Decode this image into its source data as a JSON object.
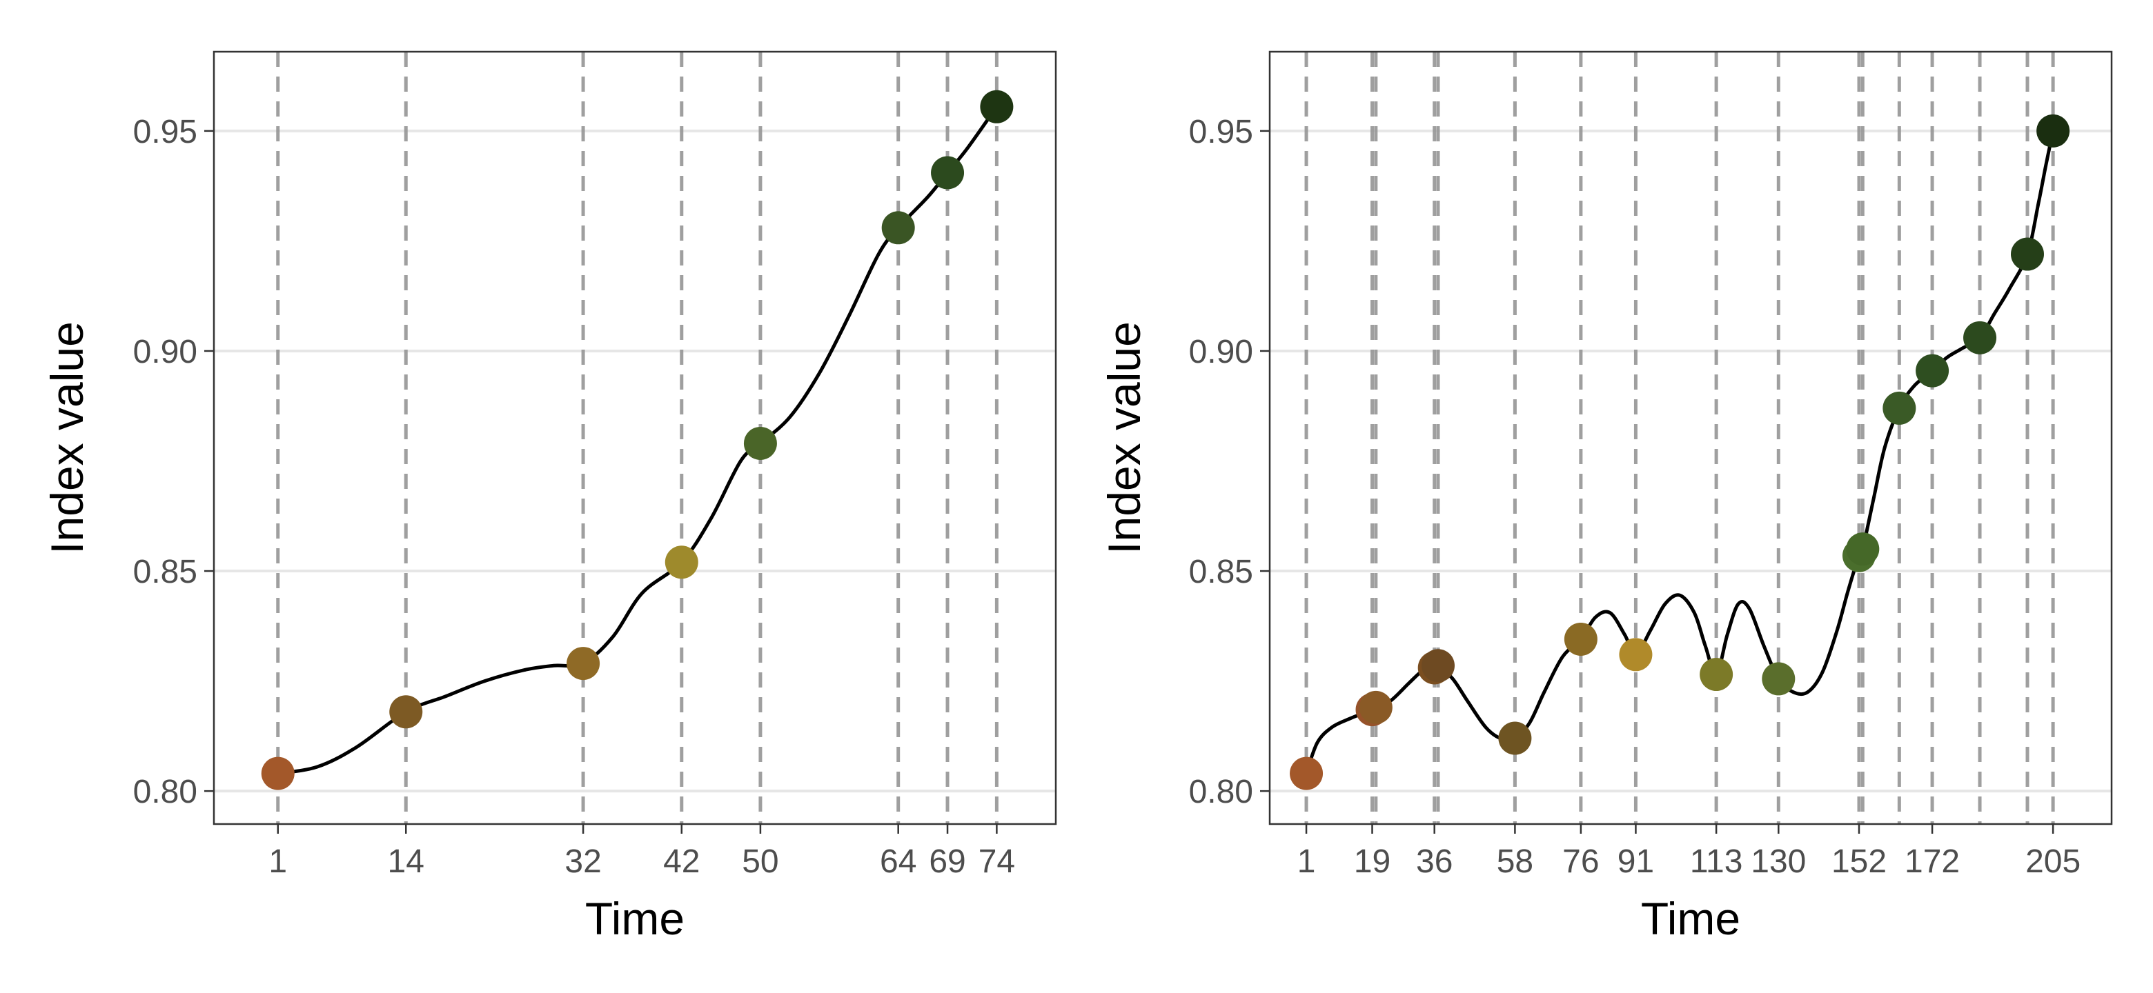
{
  "chart_data": [
    {
      "type": "line",
      "xlabel": "Time",
      "ylabel": "Index value",
      "xlim": [
        -5.5,
        80
      ],
      "ylim": [
        0.7925,
        0.968
      ],
      "grid": true,
      "x_ticks": [
        1,
        14,
        32,
        42,
        50,
        64,
        69,
        74
      ],
      "y_ticks": [
        0.8,
        0.85,
        0.9,
        0.95
      ],
      "y_tick_labels": [
        "0.80",
        "0.85",
        "0.90",
        "0.95"
      ],
      "vertical_reference_lines": [
        1,
        14,
        32,
        42,
        50,
        64,
        69,
        74
      ],
      "points": [
        {
          "x": 1,
          "y": 0.804,
          "color": "#a3582a"
        },
        {
          "x": 14,
          "y": 0.818,
          "color": "#7d5a24"
        },
        {
          "x": 32,
          "y": 0.829,
          "color": "#8f6a26"
        },
        {
          "x": 42,
          "y": 0.852,
          "color": "#9e8a2c"
        },
        {
          "x": 50,
          "y": 0.879,
          "color": "#4a6528"
        },
        {
          "x": 64,
          "y": 0.928,
          "color": "#3a5524"
        },
        {
          "x": 69,
          "y": 0.9405,
          "color": "#2c4a1e"
        },
        {
          "x": 74,
          "y": 0.9555,
          "color": "#1e3512"
        }
      ],
      "curve": [
        [
          1,
          0.804
        ],
        [
          5,
          0.8055
        ],
        [
          9,
          0.81
        ],
        [
          14,
          0.818
        ],
        [
          18,
          0.8215
        ],
        [
          22,
          0.825
        ],
        [
          26,
          0.8275
        ],
        [
          29,
          0.8285
        ],
        [
          32,
          0.829
        ],
        [
          35,
          0.835
        ],
        [
          38,
          0.845
        ],
        [
          42,
          0.852
        ],
        [
          45,
          0.862
        ],
        [
          48,
          0.875
        ],
        [
          50,
          0.879
        ],
        [
          53,
          0.885
        ],
        [
          56,
          0.895
        ],
        [
          59,
          0.908
        ],
        [
          62,
          0.922
        ],
        [
          64,
          0.928
        ],
        [
          67,
          0.935
        ],
        [
          69,
          0.9405
        ],
        [
          71,
          0.946
        ],
        [
          74,
          0.9555
        ]
      ]
    },
    {
      "type": "line",
      "xlabel": "Time",
      "ylabel": "Index value",
      "xlim": [
        -9,
        221
      ],
      "ylim": [
        0.7925,
        0.968
      ],
      "grid": true,
      "x_ticks": [
        1,
        19,
        36,
        58,
        76,
        91,
        113,
        130,
        152,
        172,
        205
      ],
      "x_tick_labels": [
        "1",
        "19",
        "36",
        "58",
        "76",
        "91",
        "113",
        "130",
        "152",
        "172",
        "205"
      ],
      "y_ticks": [
        0.8,
        0.85,
        0.9,
        0.95
      ],
      "y_tick_labels": [
        "0.80",
        "0.85",
        "0.90",
        "0.95"
      ],
      "vertical_reference_lines": [
        1,
        19,
        20,
        36,
        37,
        58,
        76,
        91,
        113,
        130,
        152,
        153,
        163,
        172,
        185,
        198,
        205
      ],
      "points": [
        {
          "x": 1,
          "y": 0.804,
          "color": "#a3582a"
        },
        {
          "x": 19,
          "y": 0.8185,
          "color": "#96522a"
        },
        {
          "x": 20,
          "y": 0.819,
          "color": "#8a5a26"
        },
        {
          "x": 36,
          "y": 0.828,
          "color": "#7a4e20"
        },
        {
          "x": 37,
          "y": 0.8285,
          "color": "#6e4a22"
        },
        {
          "x": 58,
          "y": 0.812,
          "color": "#6e5422"
        },
        {
          "x": 76,
          "y": 0.8345,
          "color": "#8a6a24"
        },
        {
          "x": 91,
          "y": 0.831,
          "color": "#b08a2a"
        },
        {
          "x": 113,
          "y": 0.8265,
          "color": "#7c7a28"
        },
        {
          "x": 130,
          "y": 0.8255,
          "color": "#5a6e2c"
        },
        {
          "x": 152,
          "y": 0.8535,
          "color": "#4a6e2c"
        },
        {
          "x": 153,
          "y": 0.855,
          "color": "#456828"
        },
        {
          "x": 163,
          "y": 0.887,
          "color": "#3a5a26"
        },
        {
          "x": 172,
          "y": 0.8955,
          "color": "#2e4e20"
        },
        {
          "x": 185,
          "y": 0.903,
          "color": "#2c4a1e"
        },
        {
          "x": 198,
          "y": 0.922,
          "color": "#253f18"
        },
        {
          "x": 205,
          "y": 0.95,
          "color": "#1a2e10"
        }
      ],
      "curve": [
        [
          1,
          0.804
        ],
        [
          4,
          0.811
        ],
        [
          8,
          0.8145
        ],
        [
          13,
          0.8165
        ],
        [
          19,
          0.8185
        ],
        [
          24,
          0.8205
        ],
        [
          29,
          0.8245
        ],
        [
          33,
          0.8275
        ],
        [
          36,
          0.828
        ],
        [
          37,
          0.8285
        ],
        [
          41,
          0.8255
        ],
        [
          45,
          0.8205
        ],
        [
          50,
          0.8145
        ],
        [
          54,
          0.812
        ],
        [
          58,
          0.812
        ],
        [
          62,
          0.8155
        ],
        [
          66,
          0.8225
        ],
        [
          71,
          0.8305
        ],
        [
          76,
          0.8345
        ],
        [
          80,
          0.8395
        ],
        [
          84,
          0.8405
        ],
        [
          88,
          0.8355
        ],
        [
          91,
          0.831
        ],
        [
          95,
          0.8365
        ],
        [
          99,
          0.8425
        ],
        [
          103,
          0.8445
        ],
        [
          107,
          0.8405
        ],
        [
          110,
          0.833
        ],
        [
          113,
          0.8265
        ],
        [
          116,
          0.8355
        ],
        [
          119,
          0.8425
        ],
        [
          122,
          0.8415
        ],
        [
          126,
          0.833
        ],
        [
          130,
          0.8255
        ],
        [
          134,
          0.8225
        ],
        [
          138,
          0.8225
        ],
        [
          142,
          0.827
        ],
        [
          146,
          0.8365
        ],
        [
          149,
          0.8455
        ],
        [
          152,
          0.8535
        ],
        [
          153,
          0.855
        ],
        [
          156,
          0.8665
        ],
        [
          159,
          0.878
        ],
        [
          163,
          0.887
        ],
        [
          167,
          0.892
        ],
        [
          172,
          0.8955
        ],
        [
          176,
          0.8985
        ],
        [
          180,
          0.9005
        ],
        [
          185,
          0.903
        ],
        [
          189,
          0.9085
        ],
        [
          193,
          0.914
        ],
        [
          198,
          0.922
        ],
        [
          201,
          0.9335
        ],
        [
          203,
          0.942
        ],
        [
          205,
          0.95
        ]
      ]
    }
  ]
}
